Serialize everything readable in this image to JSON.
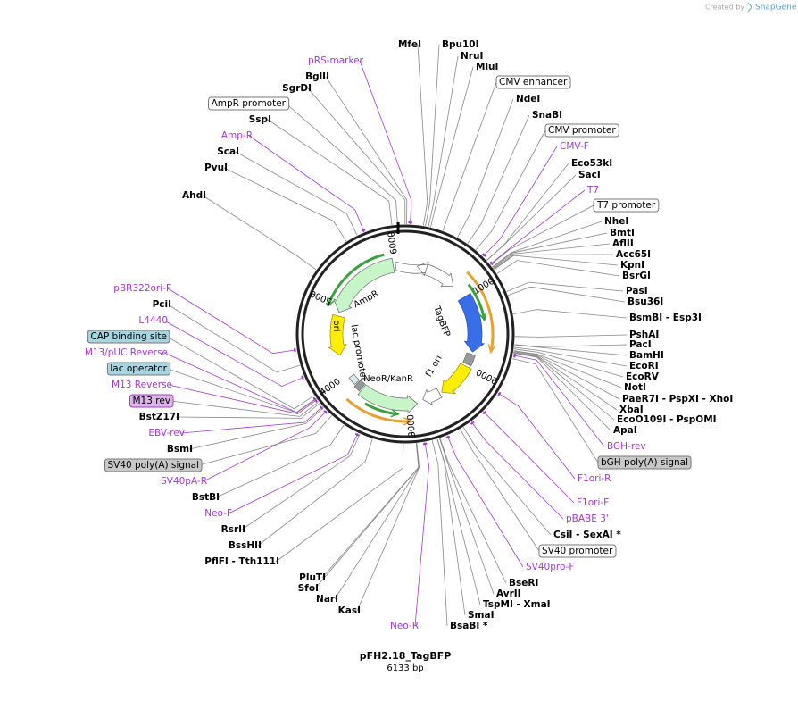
{
  "credit": "Created by",
  "brand": "SnapGene",
  "title": "pFH2.18_TagBFP",
  "subtitle": "6133 bp",
  "ring_labels": [
    "1000",
    "2000",
    "3000",
    "4000",
    "5000",
    "6000"
  ],
  "map_features": [
    "AmpR",
    "ori",
    "NeoR/KanR",
    "TagBFP",
    "f1 ori",
    "lac promoter"
  ],
  "sites": [
    {
      "name": "MfeI",
      "position": "(161)"
    },
    {
      "name": "Bpu10I",
      "position": "(180)"
    },
    {
      "name": "NruI",
      "position": "(208)"
    },
    {
      "name": "MluI",
      "position": "(228)"
    },
    {
      "name": "NdeI",
      "position": "(484)"
    },
    {
      "name": "SnaBI",
      "position": "(590)"
    },
    {
      "name": "Eco53kI",
      "position": "(816)"
    },
    {
      "name": "SacI",
      "position": "(818)"
    },
    {
      "name": "NheI",
      "position": "(895)"
    },
    {
      "name": "BmtI",
      "position": "(899)"
    },
    {
      "name": "AflII",
      "position": "(908)"
    },
    {
      "name": "Acc65I",
      "position": "(917)"
    },
    {
      "name": "KpnI",
      "position": "(921)"
    },
    {
      "name": "BsrGI",
      "position": "(966)"
    },
    {
      "name": "PasI",
      "position": "(1147)"
    },
    {
      "name": "Bsu36I",
      "position": "(1182)"
    },
    {
      "name": "BsmBI  - Esp3I",
      "position": "(1355)"
    },
    {
      "name": "PshAI",
      "position": "(1556)"
    },
    {
      "name": "PacI",
      "position": "(1627)"
    },
    {
      "name": "BamHI",
      "position": "(1631)"
    },
    {
      "name": "EcoRI",
      "position": "(1654)"
    },
    {
      "name": "EcoRV",
      "position": "(1666)"
    },
    {
      "name": "NotI",
      "position": "(1681)"
    },
    {
      "name": "PaeR7I  - PspXI  - XhoI",
      "position": "(1687)"
    },
    {
      "name": "XbaI",
      "position": "(1693)"
    },
    {
      "name": "EcoO109I  - PspOMI",
      "position": "(1699)"
    },
    {
      "name": "ApaI",
      "position": "(1703)"
    },
    {
      "name": "CsiI  - SexAI *",
      "position": "(2523)"
    },
    {
      "name": "BseRI",
      "position": "(2752)"
    },
    {
      "name": "AvrII",
      "position": "(2756)"
    },
    {
      "name": "TspMI  - XmaI",
      "position": "(2777)"
    },
    {
      "name": "SmaI",
      "position": "(2779)"
    },
    {
      "name": "BsaBI *",
      "position": "(2825)"
    },
    {
      "name": "KasI",
      "position": "(2965)"
    },
    {
      "name": "NarI",
      "position": "(2966)"
    },
    {
      "name": "SfoI",
      "position": "(2967)"
    },
    {
      "name": "PluTI",
      "position": "(2969)"
    },
    {
      "name": "PflFI  - Tth111I",
      "position": "(3084)"
    },
    {
      "name": "BssHII",
      "position": "(3363)"
    },
    {
      "name": "RsrII",
      "position": "(3482)"
    },
    {
      "name": "BstBI",
      "position": "(3648)"
    },
    {
      "name": "BsmI",
      "position": "(3886)"
    },
    {
      "name": "BstZ17I",
      "position": "(3938)"
    },
    {
      "name": "PciI",
      "position": "(4317)"
    },
    {
      "name": "AhdI",
      "position": "(5210)"
    },
    {
      "name": "PvuI",
      "position": "(5580)"
    },
    {
      "name": "ScaI",
      "position": "(5690)"
    },
    {
      "name": "SspI",
      "position": "(6014)"
    },
    {
      "name": "SgrDI",
      "position": "(6131)"
    },
    {
      "name": "BglII",
      "position": "(12)"
    }
  ],
  "primers": [
    {
      "name": "pRS-marker",
      "range": "(44 .. 63)"
    },
    {
      "name": "Amp-R",
      "range": "(5760 .. 5779)"
    },
    {
      "name": "CMV-F",
      "range": "(769 .. 789)"
    },
    {
      "name": "T7",
      "range": "(863 .. 882)"
    },
    {
      "name": "BGH-rev",
      "range": "(1724 .. 1741)"
    },
    {
      "name": "F1ori-R",
      "range": "(2087 .. 2106)"
    },
    {
      "name": "F1ori-F",
      "range": "(2297 .. 2318)"
    },
    {
      "name": "pBABE 3'",
      "range": "(2437 .. 2457)"
    },
    {
      "name": "SV40pro-F",
      "range": "(2684 .. 2703)"
    },
    {
      "name": "Neo-R",
      "range": "(2892 .. 2911)"
    },
    {
      "name": "Neo-F",
      "range": "(3502 .. 3521)"
    },
    {
      "name": "SV40pA-R",
      "range": "(3843 .. 3862)"
    },
    {
      "name": "EBV-rev",
      "range": "(3897 .. 3916)"
    },
    {
      "name": "M13 Reverse",
      "range": "(3976 .. 3992)"
    },
    {
      "name": "M13/pUC Reverse",
      "range": "(3989 .. 4011)"
    },
    {
      "name": "L4440",
      "range": "(4207 .. 4224)"
    },
    {
      "name": "pBR322ori-F",
      "range": "(4458 .. 4477)"
    }
  ],
  "features": [
    {
      "name": "CMV enhancer",
      "color": "#ffffff"
    },
    {
      "name": "CMV promoter",
      "color": "#ffffff"
    },
    {
      "name": "T7 promoter",
      "color": "#ffffff"
    },
    {
      "name": "bGH poly(A) signal",
      "color": "#c8c8c8"
    },
    {
      "name": "SV40 promoter",
      "color": "#ffffff"
    },
    {
      "name": "SV40 poly(A) signal",
      "color": "#c8c8c8"
    },
    {
      "name": "M13 rev",
      "color": "#dcb4ea"
    },
    {
      "name": "lac operator",
      "color": "#a8d4e0"
    },
    {
      "name": "CAP binding site",
      "color": "#a8d4e0"
    },
    {
      "name": "AmpR promoter",
      "color": "#ffffff"
    }
  ]
}
